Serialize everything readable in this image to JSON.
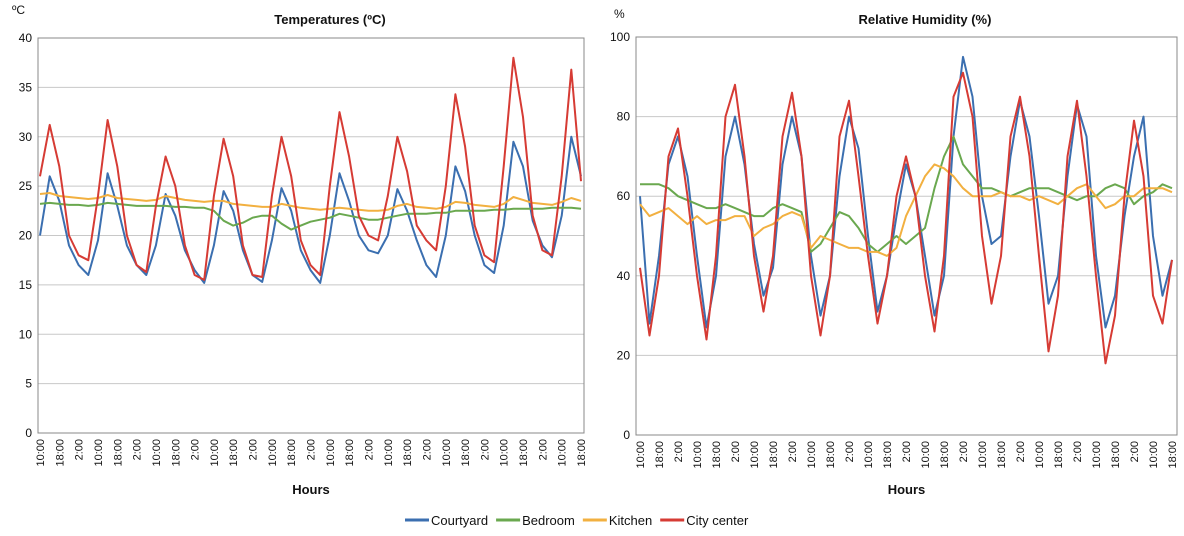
{
  "chart_data": [
    {
      "type": "line",
      "title": "Temperatures (ºC)",
      "y_label": "ºC",
      "x_label": "Hours",
      "categories": [
        "10:00",
        null,
        "18:00",
        null,
        "2:00",
        null,
        "10:00",
        null,
        "18:00",
        null,
        "2:00",
        null,
        "10:00",
        null,
        "18:00",
        null,
        "2:00",
        null,
        "10:00",
        null,
        "18:00",
        null,
        "2:00",
        null,
        "10:00",
        null,
        "18:00",
        null,
        "2:00",
        null,
        "10:00",
        null,
        "18:00",
        null,
        "2:00",
        null,
        "10:00",
        null,
        "18:00",
        null,
        "2:00",
        null,
        "10:00",
        null,
        "18:00",
        null,
        "2:00",
        null,
        "10:00",
        null,
        "18:00",
        null,
        "2:00",
        null,
        "10:00",
        null,
        "18:00"
      ],
      "ylim": [
        0,
        40
      ],
      "yticks": [
        0,
        5,
        10,
        15,
        20,
        25,
        30,
        35,
        40
      ],
      "grid": true,
      "series": [
        {
          "name": "Courtyard",
          "color": "#3b6fb0",
          "values": [
            20,
            26,
            23.5,
            19,
            17,
            16,
            19.5,
            26.3,
            23,
            19,
            17,
            16,
            19,
            24.2,
            22,
            18.5,
            16.5,
            15.2,
            19,
            24.5,
            22.5,
            18.5,
            16,
            15.3,
            19.5,
            24.8,
            22.5,
            18.5,
            16.5,
            15.2,
            20,
            26.3,
            23.5,
            20,
            18.5,
            18.2,
            20,
            24.7,
            22.5,
            19.5,
            17,
            15.8,
            20,
            27,
            24.5,
            20,
            17,
            16.2,
            21,
            29.5,
            27,
            21.5,
            19,
            17.8,
            22,
            30,
            26
          ]
        },
        {
          "name": "Bedroom",
          "color": "#6aa84f",
          "values": [
            23.2,
            23.3,
            23.2,
            23.1,
            23.1,
            23.0,
            23.1,
            23.3,
            23.2,
            23.1,
            23.0,
            23.0,
            23.0,
            23.0,
            22.9,
            22.9,
            22.8,
            22.8,
            22.5,
            21.5,
            21.0,
            21.3,
            21.8,
            22.0,
            22.0,
            21.2,
            20.6,
            21.0,
            21.4,
            21.6,
            21.8,
            22.2,
            22.0,
            21.8,
            21.6,
            21.6,
            21.8,
            22.0,
            22.2,
            22.2,
            22.2,
            22.3,
            22.3,
            22.5,
            22.5,
            22.5,
            22.5,
            22.6,
            22.6,
            22.7,
            22.7,
            22.7,
            22.7,
            22.8,
            22.8,
            22.8,
            22.7
          ]
        },
        {
          "name": "Kitchen",
          "color": "#f2b040",
          "values": [
            24.2,
            24.3,
            24.0,
            23.9,
            23.8,
            23.7,
            23.8,
            24.1,
            23.8,
            23.7,
            23.6,
            23.5,
            23.6,
            24.0,
            23.8,
            23.6,
            23.5,
            23.4,
            23.5,
            23.5,
            23.2,
            23.1,
            23.0,
            22.9,
            22.9,
            23.2,
            23.0,
            22.8,
            22.7,
            22.6,
            22.7,
            22.8,
            22.7,
            22.6,
            22.5,
            22.5,
            22.6,
            23.0,
            23.2,
            22.9,
            22.8,
            22.7,
            22.9,
            23.4,
            23.3,
            23.1,
            23.0,
            22.9,
            23.2,
            23.9,
            23.6,
            23.3,
            23.2,
            23.1,
            23.4,
            23.8,
            23.5
          ]
        },
        {
          "name": "City center",
          "color": "#d63b34",
          "values": [
            26,
            31.2,
            27,
            20,
            18,
            17.5,
            24,
            31.7,
            27,
            20,
            17,
            16.3,
            23,
            28,
            25,
            19,
            16,
            15.5,
            24,
            29.8,
            26,
            19,
            16,
            15.8,
            24,
            30,
            26,
            19.5,
            17,
            16,
            25,
            32.5,
            28,
            22,
            20,
            19.5,
            24,
            30,
            26.5,
            21,
            19.5,
            18.5,
            25,
            34.3,
            29,
            21,
            18,
            17.3,
            27,
            38,
            32,
            22,
            18.5,
            18,
            26,
            36.8,
            25.5
          ]
        }
      ]
    },
    {
      "type": "line",
      "title": "Relative Humidity (%)",
      "y_label": "%",
      "x_label": "Hours",
      "categories": [
        "10:00",
        null,
        "18:00",
        null,
        "2:00",
        null,
        "10:00",
        null,
        "18:00",
        null,
        "2:00",
        null,
        "10:00",
        null,
        "18:00",
        null,
        "2:00",
        null,
        "10:00",
        null,
        "18:00",
        null,
        "2:00",
        null,
        "10:00",
        null,
        "18:00",
        null,
        "2:00",
        null,
        "10:00",
        null,
        "18:00",
        null,
        "2:00",
        null,
        "10:00",
        null,
        "18:00",
        null,
        "2:00",
        null,
        "10:00",
        null,
        "18:00",
        null,
        "2:00",
        null,
        "10:00",
        null,
        "18:00",
        null,
        "2:00",
        null,
        "10:00",
        null,
        "18:00"
      ],
      "ylim": [
        0,
        100
      ],
      "yticks": [
        0,
        20,
        40,
        60,
        80,
        100
      ],
      "grid": true,
      "series": [
        {
          "name": "Courtyard",
          "color": "#3b6fb0",
          "values": [
            60,
            28,
            45,
            68,
            75,
            65,
            45,
            27,
            40,
            70,
            80,
            68,
            48,
            35,
            42,
            68,
            80,
            70,
            45,
            30,
            40,
            65,
            80,
            72,
            50,
            31,
            40,
            55,
            68,
            60,
            45,
            30,
            40,
            75,
            95,
            85,
            60,
            48,
            50,
            70,
            84,
            75,
            55,
            33,
            40,
            65,
            83,
            75,
            45,
            27,
            35,
            55,
            70,
            80,
            50,
            35,
            44
          ]
        },
        {
          "name": "Bedroom",
          "color": "#6aa84f",
          "values": [
            63,
            63,
            63,
            62,
            60,
            59,
            58,
            57,
            57,
            58,
            57,
            56,
            55,
            55,
            57,
            58,
            57,
            56,
            46,
            48,
            52,
            56,
            55,
            52,
            48,
            46,
            48,
            50,
            48,
            50,
            52,
            62,
            70,
            75,
            68,
            65,
            62,
            62,
            61,
            60,
            61,
            62,
            62,
            62,
            61,
            60,
            59,
            60,
            60,
            62,
            63,
            62,
            58,
            60,
            61,
            63,
            62
          ]
        },
        {
          "name": "Kitchen",
          "color": "#f2b040",
          "values": [
            58,
            55,
            56,
            57,
            55,
            53,
            55,
            53,
            54,
            54,
            55,
            55,
            50,
            52,
            53,
            55,
            56,
            55,
            47,
            50,
            49,
            48,
            47,
            47,
            46,
            46,
            45,
            47,
            55,
            60,
            65,
            68,
            67,
            65,
            62,
            60,
            60,
            60,
            61,
            60,
            60,
            59,
            60,
            59,
            58,
            60,
            62,
            63,
            60,
            57,
            58,
            60,
            60,
            62,
            62,
            62,
            61
          ]
        },
        {
          "name": "City center",
          "color": "#d63b34",
          "values": [
            42,
            25,
            40,
            70,
            77,
            60,
            40,
            24,
            45,
            80,
            88,
            70,
            45,
            31,
            45,
            75,
            86,
            70,
            40,
            25,
            40,
            75,
            84,
            65,
            45,
            28,
            40,
            60,
            70,
            60,
            40,
            26,
            45,
            85,
            91,
            80,
            50,
            33,
            45,
            75,
            85,
            70,
            45,
            21,
            35,
            70,
            84,
            65,
            40,
            18,
            30,
            60,
            79,
            65,
            35,
            28,
            44
          ]
        }
      ]
    }
  ]
}
